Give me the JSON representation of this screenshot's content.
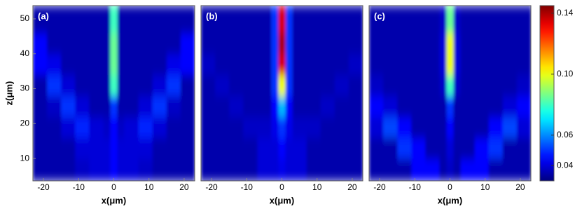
{
  "chart_data": [
    {
      "type": "heatmap",
      "label": "(a)",
      "xlabel": "x(μm)",
      "ylabel": "z(μm)",
      "xlim": [
        -23,
        23
      ],
      "ylim": [
        3.6,
        53.8
      ],
      "xticks": [
        -20,
        -10,
        0,
        10,
        20
      ],
      "yticks": [
        10,
        20,
        30,
        40,
        50
      ],
      "xbins": [
        -23,
        -19,
        -15,
        -11,
        -7,
        -3,
        -1,
        1,
        3,
        7,
        11,
        15,
        19,
        23
      ],
      "ybins": [
        3.6,
        10,
        16,
        22,
        28,
        34,
        40,
        46,
        53.8
      ],
      "z": [
        [
          0.035,
          0.035,
          0.035,
          0.038,
          0.04,
          0.04,
          0.045,
          0.04,
          0.04,
          0.038,
          0.035,
          0.035,
          0.035
        ],
        [
          0.035,
          0.035,
          0.035,
          0.04,
          0.04,
          0.04,
          0.045,
          0.04,
          0.04,
          0.04,
          0.035,
          0.035,
          0.035
        ],
        [
          0.035,
          0.035,
          0.04,
          0.048,
          0.04,
          0.038,
          0.045,
          0.038,
          0.04,
          0.048,
          0.04,
          0.035,
          0.035
        ],
        [
          0.035,
          0.038,
          0.05,
          0.04,
          0.035,
          0.035,
          0.05,
          0.035,
          0.035,
          0.04,
          0.05,
          0.038,
          0.035
        ],
        [
          0.035,
          0.05,
          0.04,
          0.035,
          0.035,
          0.035,
          0.08,
          0.035,
          0.035,
          0.035,
          0.04,
          0.05,
          0.035
        ],
        [
          0.045,
          0.042,
          0.035,
          0.035,
          0.035,
          0.035,
          0.085,
          0.035,
          0.035,
          0.035,
          0.035,
          0.042,
          0.045
        ],
        [
          0.045,
          0.035,
          0.035,
          0.035,
          0.035,
          0.035,
          0.085,
          0.035,
          0.035,
          0.035,
          0.035,
          0.035,
          0.045
        ],
        [
          0.035,
          0.035,
          0.035,
          0.035,
          0.035,
          0.035,
          0.08,
          0.035,
          0.035,
          0.035,
          0.035,
          0.035,
          0.035
        ]
      ]
    },
    {
      "type": "heatmap",
      "label": "(b)",
      "xlabel": "x(μm)",
      "xlim": [
        -23,
        23
      ],
      "ylim": [
        3.6,
        53.8
      ],
      "xticks": [
        -20,
        -10,
        0,
        10,
        20
      ],
      "xbins": [
        -23,
        -19,
        -15,
        -11,
        -7,
        -3,
        -1,
        1,
        3,
        7,
        11,
        15,
        19,
        23
      ],
      "ybins": [
        3.6,
        10,
        16,
        22,
        28,
        34,
        40,
        46,
        53.8
      ],
      "z": [
        [
          0.035,
          0.035,
          0.035,
          0.035,
          0.04,
          0.04,
          0.042,
          0.04,
          0.04,
          0.035,
          0.035,
          0.035,
          0.035
        ],
        [
          0.035,
          0.035,
          0.035,
          0.035,
          0.04,
          0.04,
          0.045,
          0.04,
          0.04,
          0.035,
          0.035,
          0.035,
          0.035
        ],
        [
          0.035,
          0.035,
          0.035,
          0.038,
          0.038,
          0.042,
          0.05,
          0.042,
          0.038,
          0.038,
          0.035,
          0.035,
          0.035
        ],
        [
          0.035,
          0.035,
          0.038,
          0.035,
          0.035,
          0.045,
          0.065,
          0.045,
          0.035,
          0.035,
          0.038,
          0.035,
          0.035
        ],
        [
          0.035,
          0.038,
          0.035,
          0.035,
          0.035,
          0.05,
          0.1,
          0.05,
          0.035,
          0.035,
          0.035,
          0.038,
          0.035
        ],
        [
          0.038,
          0.035,
          0.035,
          0.035,
          0.035,
          0.05,
          0.135,
          0.05,
          0.035,
          0.035,
          0.035,
          0.035,
          0.038
        ],
        [
          0.035,
          0.035,
          0.035,
          0.035,
          0.035,
          0.05,
          0.14,
          0.05,
          0.035,
          0.035,
          0.035,
          0.035,
          0.035
        ],
        [
          0.035,
          0.035,
          0.035,
          0.035,
          0.035,
          0.05,
          0.135,
          0.05,
          0.035,
          0.035,
          0.035,
          0.035,
          0.035
        ]
      ]
    },
    {
      "type": "heatmap",
      "label": "(c)",
      "xlabel": "x(μm)",
      "xlim": [
        -23,
        23
      ],
      "ylim": [
        3.6,
        53.8
      ],
      "xticks": [
        -20,
        -10,
        0,
        10,
        20
      ],
      "xbins": [
        -23,
        -19,
        -15,
        -11,
        -7,
        -3,
        -1,
        1,
        3,
        7,
        11,
        15,
        19,
        23
      ],
      "ybins": [
        3.6,
        10,
        16,
        22,
        28,
        34,
        40,
        46,
        53.8
      ],
      "z": [
        [
          0.035,
          0.035,
          0.035,
          0.045,
          0.045,
          0.035,
          0.038,
          0.035,
          0.045,
          0.045,
          0.035,
          0.035,
          0.035
        ],
        [
          0.035,
          0.035,
          0.05,
          0.045,
          0.035,
          0.035,
          0.04,
          0.035,
          0.035,
          0.045,
          0.05,
          0.035,
          0.035
        ],
        [
          0.04,
          0.052,
          0.045,
          0.035,
          0.035,
          0.035,
          0.045,
          0.035,
          0.035,
          0.035,
          0.045,
          0.052,
          0.04
        ],
        [
          0.045,
          0.04,
          0.035,
          0.035,
          0.035,
          0.035,
          0.05,
          0.035,
          0.035,
          0.035,
          0.035,
          0.04,
          0.045
        ],
        [
          0.038,
          0.035,
          0.035,
          0.035,
          0.035,
          0.038,
          0.08,
          0.038,
          0.035,
          0.035,
          0.035,
          0.035,
          0.038
        ],
        [
          0.035,
          0.035,
          0.035,
          0.035,
          0.035,
          0.04,
          0.1,
          0.04,
          0.035,
          0.035,
          0.035,
          0.035,
          0.035
        ],
        [
          0.035,
          0.035,
          0.035,
          0.035,
          0.035,
          0.04,
          0.1,
          0.04,
          0.035,
          0.035,
          0.035,
          0.035,
          0.035
        ],
        [
          0.035,
          0.035,
          0.035,
          0.035,
          0.035,
          0.038,
          0.085,
          0.038,
          0.035,
          0.035,
          0.035,
          0.035,
          0.035
        ]
      ],
      "colormap": "jet",
      "colorbar": {
        "clim": [
          0.03,
          0.145
        ],
        "ticks": [
          0.04,
          0.06,
          {
            "value": 0.1,
            "label": "0.10"
          },
          0.14
        ]
      }
    }
  ]
}
